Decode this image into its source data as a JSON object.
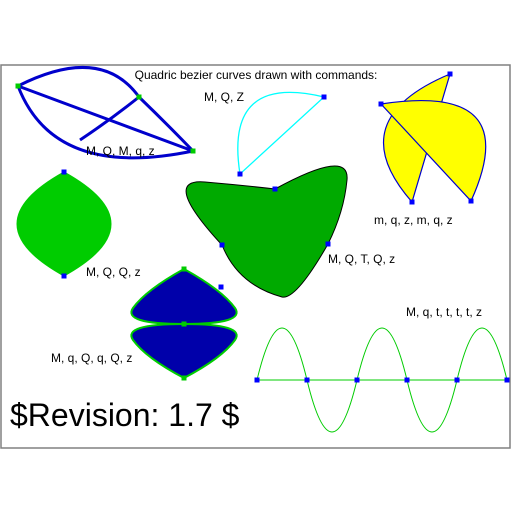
{
  "title": "Quadric bezier curves drawn with commands:",
  "revision": "$Revision: 1.7 $",
  "labels": {
    "mqmqz": "M, Q, M, q, z",
    "mqz": "M, Q, Z",
    "mqzmqz": "m, q, z, m, q, z",
    "mqq": "M, Q, Q, z",
    "mqtqz": "M, Q, T, Q, z",
    "mqqqqz": "M, q, Q, q, Q, z",
    "mqttttz": "M, q, t, t, t, t, z"
  },
  "colors": {
    "blue": "#0000ff",
    "dark_blue": "#0000cc",
    "cyan": "#00ffff",
    "yellow": "#ffff00",
    "green": "#00cc00",
    "light_green": "#00ff00",
    "black": "#000000",
    "frame": "#808080"
  }
}
